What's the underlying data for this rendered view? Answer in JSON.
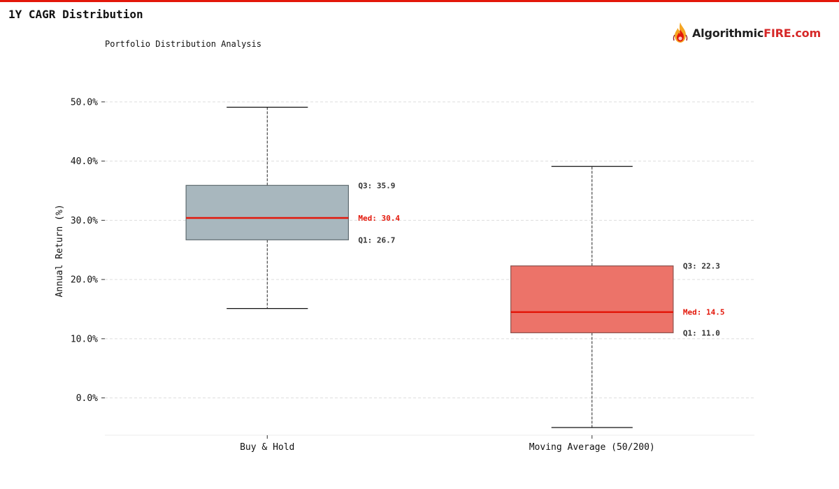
{
  "header": {
    "title": "1Y CAGR Distribution",
    "accent_color": "#e3170a"
  },
  "logo": {
    "icon": "flame-icon",
    "text_dark": "Algorithmic",
    "text_red": "FIRE.com"
  },
  "chart_data": {
    "type": "box",
    "subtitle": "Portfolio Distribution Analysis",
    "ylabel": "Annual Return (%)",
    "xlabel": "",
    "ylim": [
      -6.3,
      56
    ],
    "yticks": [
      0,
      10,
      20,
      30,
      40,
      50
    ],
    "ytick_labels": [
      "0.0%",
      "10.0%",
      "20.0%",
      "30.0%",
      "40.0%",
      "50.0%"
    ],
    "grid": true,
    "categories": [
      "Buy & Hold",
      "Moving Average (50/200)"
    ],
    "boxes": [
      {
        "category": "Buy & Hold",
        "whisker_low": 15.1,
        "q1": 26.7,
        "median": 30.4,
        "q3": 35.9,
        "whisker_high": 49.1,
        "fill_color": "#a8b7be",
        "edge_color": "#5f6b70",
        "labels": {
          "q3": "Q3: 35.9",
          "median": "Med: 30.4",
          "q1": "Q1: 26.7"
        }
      },
      {
        "category": "Moving Average (50/200)",
        "whisker_low": -5.0,
        "q1": 11.0,
        "median": 14.5,
        "q3": 22.3,
        "whisker_high": 39.1,
        "fill_color": "#ec7369",
        "edge_color": "#8c5450",
        "labels": {
          "q3": "Q3: 22.3",
          "median": "Med: 14.5",
          "q1": "Q1: 11.0"
        }
      }
    ],
    "median_color": "#e3170a"
  }
}
